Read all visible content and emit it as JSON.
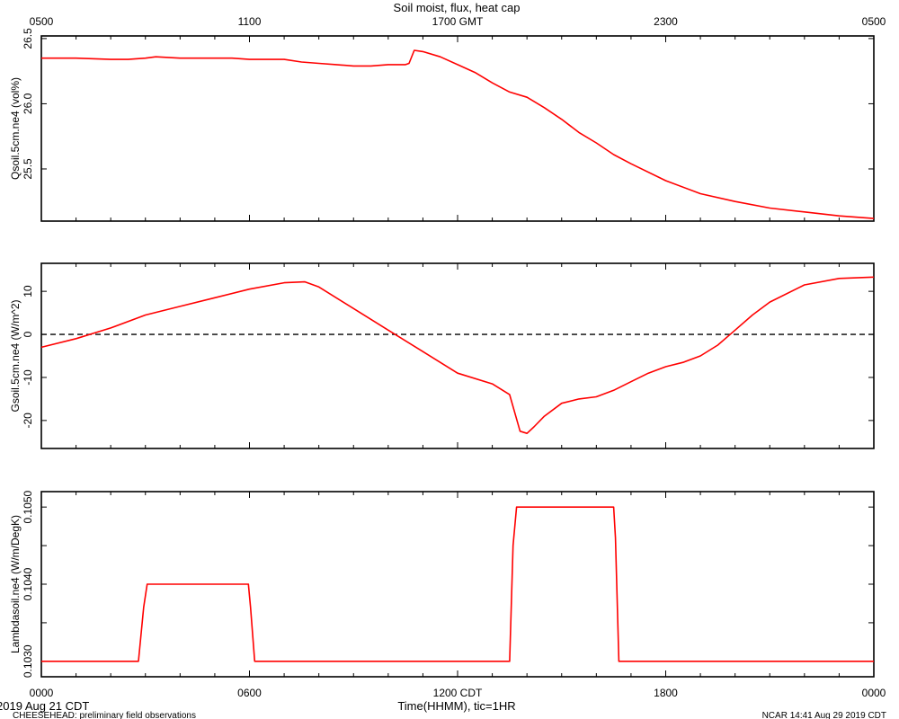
{
  "title": "Soil moist, flux, heat cap",
  "top_axis_labels": [
    "0500",
    "1100",
    "1700 GMT",
    "2300",
    "0500"
  ],
  "bottom_axis_labels": [
    "0000",
    "0600",
    "1200 CDT",
    "1800",
    "0000"
  ],
  "xlabel": "Time(HHMM), tic=1HR",
  "date_label": "2019 Aug 21 CDT",
  "footer_left": "CHEESEHEAD: preliminary field observations",
  "footer_right": "NCAR 14:41 Aug 29 2019 CDT",
  "colors": {
    "series": "#ff0000",
    "axis": "#000000",
    "zero_line": "#000000"
  },
  "chart_data": [
    {
      "type": "line",
      "ylabel": "Qsoil.5cm.ne4 (vol%)",
      "x_units": "hours since 0000 CDT",
      "xlim": [
        0,
        24
      ],
      "ylim": [
        25.1,
        26.52
      ],
      "yticks": [
        25.5,
        26.0,
        26.5
      ],
      "ytick_labels": [
        "25.5",
        "26.0",
        "26.5"
      ],
      "zero_line": false,
      "series": [
        {
          "x": [
            0,
            1,
            2,
            2.5,
            3,
            3.3,
            4,
            5,
            5.5,
            6,
            7,
            7.5,
            8,
            8.5,
            9,
            9.5,
            10,
            10.5,
            10.6,
            10.75,
            11,
            11.5,
            12,
            12.5,
            13,
            13.5,
            14,
            14.5,
            15,
            15.5,
            16,
            16.5,
            17,
            18,
            19,
            20,
            21,
            22,
            23,
            24
          ],
          "y": [
            26.35,
            26.35,
            26.34,
            26.34,
            26.35,
            26.36,
            26.35,
            26.35,
            26.35,
            26.34,
            26.34,
            26.32,
            26.31,
            26.3,
            26.29,
            26.29,
            26.3,
            26.3,
            26.31,
            26.41,
            26.4,
            26.36,
            26.3,
            26.24,
            26.16,
            26.09,
            26.05,
            25.97,
            25.88,
            25.78,
            25.7,
            25.61,
            25.54,
            25.41,
            25.31,
            25.25,
            25.2,
            25.17,
            25.14,
            25.12
          ]
        }
      ]
    },
    {
      "type": "line",
      "ylabel": "Gsoil.5cm.ne4 (W/m^2)",
      "x_units": "hours since 0000 CDT",
      "xlim": [
        0,
        24
      ],
      "ylim": [
        -26.5,
        16.5
      ],
      "yticks": [
        -20,
        -10,
        0,
        10
      ],
      "ytick_labels": [
        "-20",
        "-10",
        "0",
        "10"
      ],
      "zero_line": true,
      "series": [
        {
          "x": [
            0,
            1,
            2,
            3,
            4,
            5,
            6,
            7,
            7.6,
            8,
            9,
            10,
            11,
            12,
            13,
            13.5,
            13.8,
            14,
            14.2,
            14.5,
            15,
            15.5,
            16,
            16.5,
            17,
            17.5,
            18,
            18.5,
            19,
            19.5,
            20,
            20.5,
            21,
            22,
            23,
            24
          ],
          "y": [
            -3,
            -1,
            1.5,
            4.5,
            6.5,
            8.5,
            10.5,
            12,
            12.2,
            11,
            6,
            1,
            -4,
            -9,
            -11.5,
            -14,
            -22.5,
            -23,
            -21.5,
            -19,
            -16,
            -15,
            -14.5,
            -13,
            -11,
            -9,
            -7.5,
            -6.5,
            -5,
            -2.5,
            1,
            4.5,
            7.5,
            11.5,
            13,
            13.3
          ]
        }
      ]
    },
    {
      "type": "line",
      "ylabel": "Lambdasoil.ne4 (W/m/DegK)",
      "x_units": "hours since 0000 CDT",
      "xlim": [
        0,
        24
      ],
      "ylim": [
        0.1028,
        0.1052
      ],
      "yticks": [
        0.103,
        0.1035,
        0.104,
        0.1045,
        0.105
      ],
      "ytick_labels": [
        "0.1030",
        "",
        "0.1040",
        "",
        "0.1050"
      ],
      "zero_line": false,
      "series": [
        {
          "x": [
            0,
            2.8,
            2.95,
            3.05,
            5.8,
            5.97,
            6.03,
            6.15,
            13.5,
            13.6,
            13.7,
            16.5,
            16.55,
            16.65,
            24
          ],
          "y": [
            0.103,
            0.103,
            0.1037,
            0.104,
            0.104,
            0.104,
            0.1037,
            0.103,
            0.103,
            0.1045,
            0.105,
            0.105,
            0.1046,
            0.103,
            0.103
          ]
        }
      ]
    }
  ]
}
